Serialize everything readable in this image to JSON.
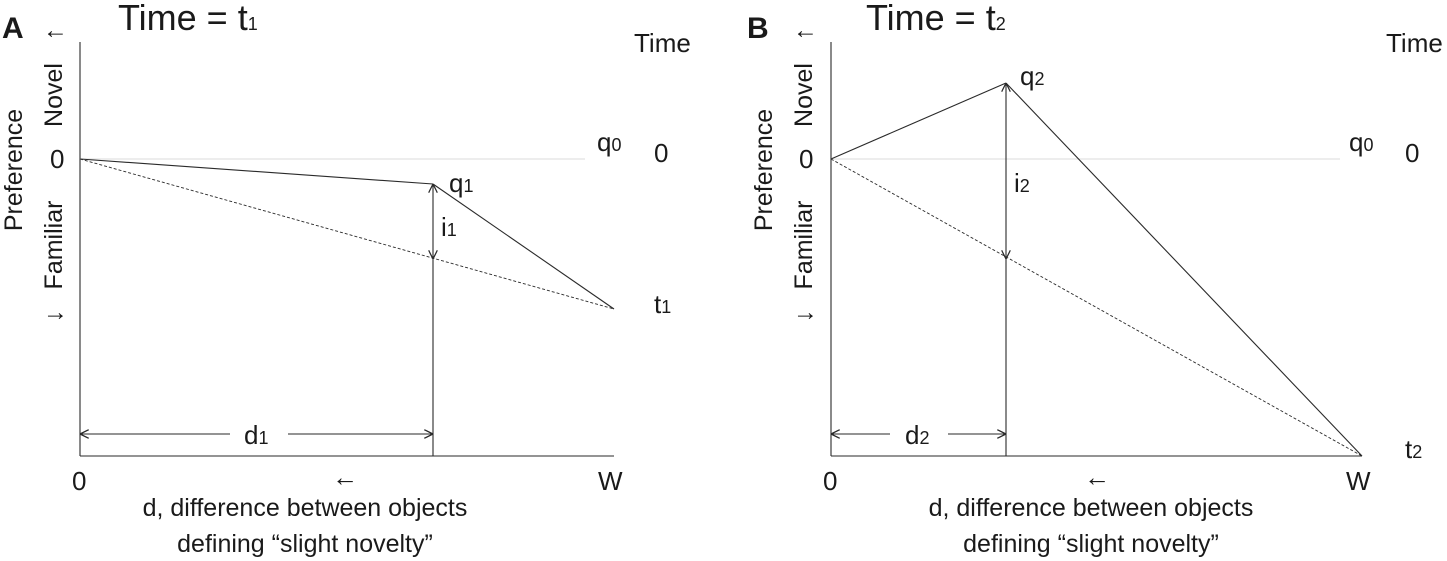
{
  "panels": [
    {
      "letter": "A",
      "title_main": "Time = t",
      "title_sub": "1",
      "time_header": "Time",
      "y_axis": {
        "novel_label": "Novel",
        "arrow_up": "↑",
        "preference_label": "Preference",
        "familiar_label": "Familiar",
        "arrow_down": "↓",
        "zero_label": "0"
      },
      "x_axis": {
        "origin_label": "0",
        "end_label": "W",
        "arrow_left": "←",
        "title_line1": "d, difference between objects",
        "title_line2": "defining “slight novelty”"
      },
      "q0": {
        "main": "q",
        "sub": "0"
      },
      "time_zero": "0",
      "q_point": {
        "main": "q",
        "sub": "1"
      },
      "i_label": {
        "main": "i",
        "sub": "1"
      },
      "d_label": {
        "main": "d",
        "sub": "1"
      },
      "t_label": {
        "main": "t",
        "sub": "1"
      }
    },
    {
      "letter": "B",
      "title_main": "Time = t",
      "title_sub": "2",
      "time_header": "Time",
      "y_axis": {
        "novel_label": "Novel",
        "arrow_up": "↑",
        "preference_label": "Preference",
        "familiar_label": "Familiar",
        "arrow_down": "↓",
        "zero_label": "0"
      },
      "x_axis": {
        "origin_label": "0",
        "end_label": "W",
        "arrow_left": "←",
        "title_line1": "d, difference between objects",
        "title_line2": "defining “slight novelty”"
      },
      "q0": {
        "main": "q",
        "sub": "0"
      },
      "time_zero": "0",
      "q_point": {
        "main": "q",
        "sub": "2"
      },
      "i_label": {
        "main": "i",
        "sub": "2"
      },
      "d_label": {
        "main": "d",
        "sub": "2"
      },
      "t_label": {
        "main": "t",
        "sub": "2"
      }
    }
  ]
}
